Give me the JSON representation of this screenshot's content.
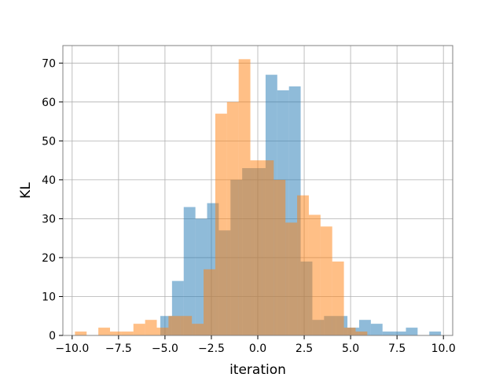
{
  "chart_data": {
    "type": "histogram",
    "title": "",
    "xlabel": "iteration",
    "ylabel": "KL",
    "xlim": [
      -10.5,
      10.5
    ],
    "ylim": [
      0,
      74.5
    ],
    "xticks": [
      -10.0,
      -7.5,
      -5.0,
      -2.5,
      0.0,
      2.5,
      5.0,
      7.5,
      10.0
    ],
    "xtick_labels": [
      "−10.0",
      "−7.5",
      "−5.0",
      "−2.5",
      "0.0",
      "2.5",
      "5.0",
      "7.5",
      "10.0"
    ],
    "yticks": [
      0,
      10,
      20,
      30,
      40,
      50,
      60,
      70
    ],
    "ytick_labels": [
      "0",
      "10",
      "20",
      "30",
      "40",
      "50",
      "60",
      "70"
    ],
    "grid": true,
    "series": [
      {
        "color": "#1f77b4",
        "alpha": 0.5,
        "bins": [
          {
            "x0": -5.25,
            "x1": -4.62,
            "count": 5
          },
          {
            "x0": -4.62,
            "x1": -3.99,
            "count": 14
          },
          {
            "x0": -3.99,
            "x1": -3.36,
            "count": 33
          },
          {
            "x0": -3.36,
            "x1": -2.73,
            "count": 30
          },
          {
            "x0": -2.73,
            "x1": -2.1,
            "count": 34
          },
          {
            "x0": -2.1,
            "x1": -1.47,
            "count": 27
          },
          {
            "x0": -1.47,
            "x1": -0.84,
            "count": 40
          },
          {
            "x0": -0.84,
            "x1": -0.21,
            "count": 43
          },
          {
            "x0": -0.21,
            "x1": 0.42,
            "count": 43
          },
          {
            "x0": 0.42,
            "x1": 1.05,
            "count": 67
          },
          {
            "x0": 1.05,
            "x1": 1.68,
            "count": 63
          },
          {
            "x0": 1.68,
            "x1": 2.31,
            "count": 64
          },
          {
            "x0": 2.31,
            "x1": 2.94,
            "count": 19
          },
          {
            "x0": 2.94,
            "x1": 3.57,
            "count": 4
          },
          {
            "x0": 3.57,
            "x1": 4.2,
            "count": 5
          },
          {
            "x0": 4.2,
            "x1": 4.83,
            "count": 5
          },
          {
            "x0": 4.83,
            "x1": 5.46,
            "count": 2
          },
          {
            "x0": 5.46,
            "x1": 6.09,
            "count": 4
          },
          {
            "x0": 6.09,
            "x1": 6.72,
            "count": 3
          },
          {
            "x0": 6.72,
            "x1": 7.35,
            "count": 1
          },
          {
            "x0": 7.35,
            "x1": 7.98,
            "count": 1
          },
          {
            "x0": 7.98,
            "x1": 8.61,
            "count": 2
          },
          {
            "x0": 8.61,
            "x1": 9.24,
            "count": 0
          },
          {
            "x0": 9.24,
            "x1": 9.87,
            "count": 1
          }
        ]
      },
      {
        "color": "#ff7f0e",
        "alpha": 0.5,
        "bins": [
          {
            "x0": -9.85,
            "x1": -9.22,
            "count": 1
          },
          {
            "x0": -9.22,
            "x1": -8.59,
            "count": 0
          },
          {
            "x0": -8.59,
            "x1": -7.96,
            "count": 2
          },
          {
            "x0": -7.96,
            "x1": -7.33,
            "count": 1
          },
          {
            "x0": -7.33,
            "x1": -6.7,
            "count": 1
          },
          {
            "x0": -6.7,
            "x1": -6.07,
            "count": 3
          },
          {
            "x0": -6.07,
            "x1": -5.44,
            "count": 4
          },
          {
            "x0": -5.44,
            "x1": -4.81,
            "count": 2
          },
          {
            "x0": -4.81,
            "x1": -4.18,
            "count": 5
          },
          {
            "x0": -4.18,
            "x1": -3.55,
            "count": 5
          },
          {
            "x0": -3.55,
            "x1": -2.92,
            "count": 3
          },
          {
            "x0": -2.92,
            "x1": -2.29,
            "count": 17
          },
          {
            "x0": -2.29,
            "x1": -1.66,
            "count": 57
          },
          {
            "x0": -1.66,
            "x1": -1.03,
            "count": 60
          },
          {
            "x0": -1.03,
            "x1": -0.4,
            "count": 71
          },
          {
            "x0": -0.4,
            "x1": 0.23,
            "count": 45
          },
          {
            "x0": 0.23,
            "x1": 0.86,
            "count": 45
          },
          {
            "x0": 0.86,
            "x1": 1.49,
            "count": 40
          },
          {
            "x0": 1.49,
            "x1": 2.12,
            "count": 29
          },
          {
            "x0": 2.12,
            "x1": 2.75,
            "count": 36
          },
          {
            "x0": 2.75,
            "x1": 3.38,
            "count": 31
          },
          {
            "x0": 3.38,
            "x1": 4.01,
            "count": 28
          },
          {
            "x0": 4.01,
            "x1": 4.64,
            "count": 19
          },
          {
            "x0": 4.64,
            "x1": 5.27,
            "count": 2
          },
          {
            "x0": 5.27,
            "x1": 5.9,
            "count": 1
          }
        ]
      }
    ]
  }
}
